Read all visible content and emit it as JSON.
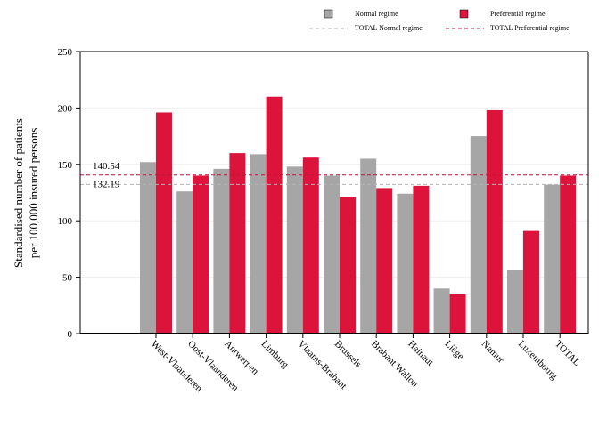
{
  "chart_data": {
    "type": "bar",
    "title": "",
    "xlabel": "",
    "ylabel": [
      "Standardised number of patients",
      "per 100,000 insured persons"
    ],
    "ylim": [
      0,
      250
    ],
    "yticks": [
      0,
      50,
      100,
      150,
      200,
      250
    ],
    "grid": "horizontal",
    "legend_position": "top-right",
    "categories": [
      "West-Vlaanderen",
      "Oost-Vlaanderen",
      "Antwerpen",
      "Limburg",
      "Vlaams-Brabant",
      "Brussels",
      "Brabant Wallon",
      "Hainaut",
      "Liège",
      "Namur",
      "Luxembourg",
      "TOTAL"
    ],
    "series": [
      {
        "name": "Normal regime",
        "color": "#a6a6a6",
        "values": [
          152,
          126,
          146,
          159,
          148,
          140,
          155,
          124,
          40,
          175,
          56,
          132
        ]
      },
      {
        "name": "Preferential regime",
        "color": "#dc143c",
        "values": [
          196,
          140,
          160,
          210,
          156,
          121,
          129,
          131,
          35,
          198,
          91,
          140
        ]
      }
    ],
    "reference_lines": [
      {
        "name": "TOTAL Normal regime",
        "value": 132.19,
        "label": "132.19",
        "color": "#b3b3b3",
        "style": "dashed"
      },
      {
        "name": "TOTAL Preferential regime",
        "value": 140.54,
        "label": "140.54",
        "color": "#c0143c",
        "style": "dashed"
      }
    ]
  }
}
